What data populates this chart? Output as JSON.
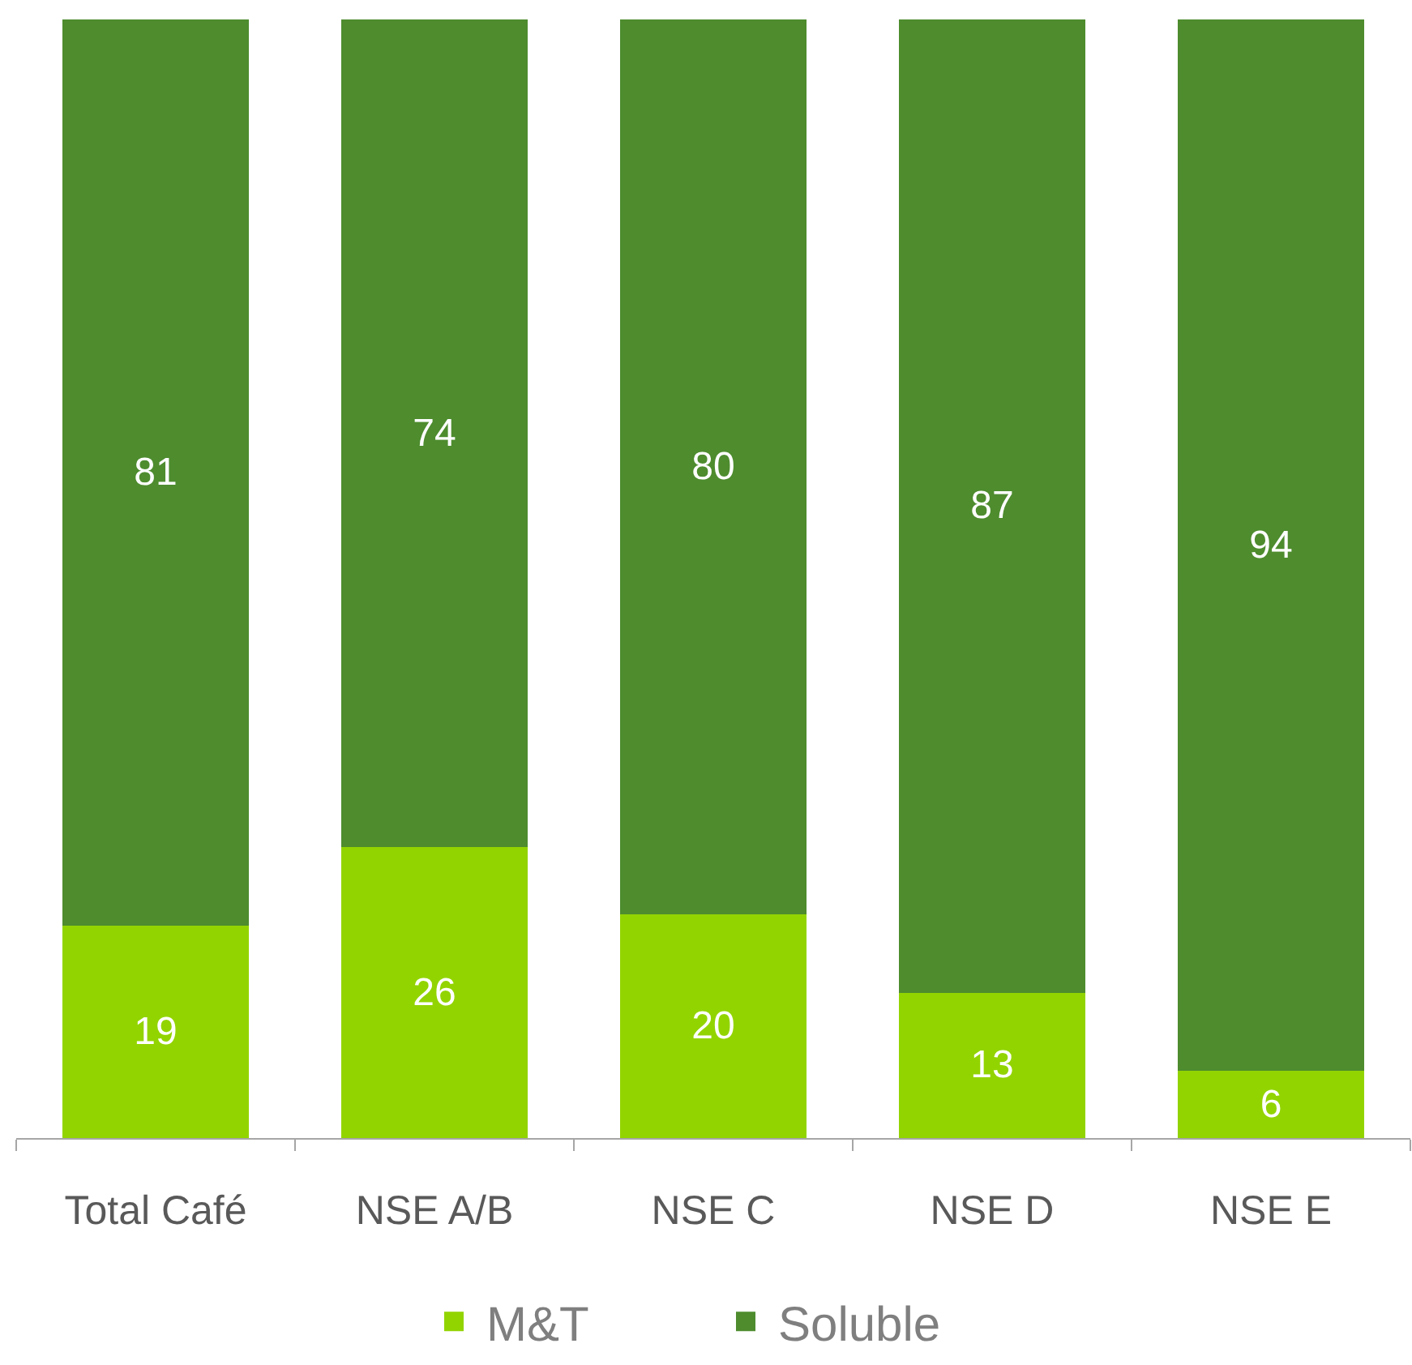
{
  "chart_data": {
    "type": "bar",
    "stacked": true,
    "categories": [
      "Total Café",
      "NSE A/B",
      "NSE C",
      "NSE D",
      "NSE E"
    ],
    "series": [
      {
        "name": "M&T",
        "color": "#92d400",
        "values": [
          19,
          26,
          20,
          13,
          6
        ]
      },
      {
        "name": "Soluble",
        "color": "#4e8c2e",
        "values": [
          81,
          74,
          80,
          87,
          94
        ]
      }
    ],
    "data_labels": true,
    "legend": "bottom",
    "tick_labels": "x"
  }
}
